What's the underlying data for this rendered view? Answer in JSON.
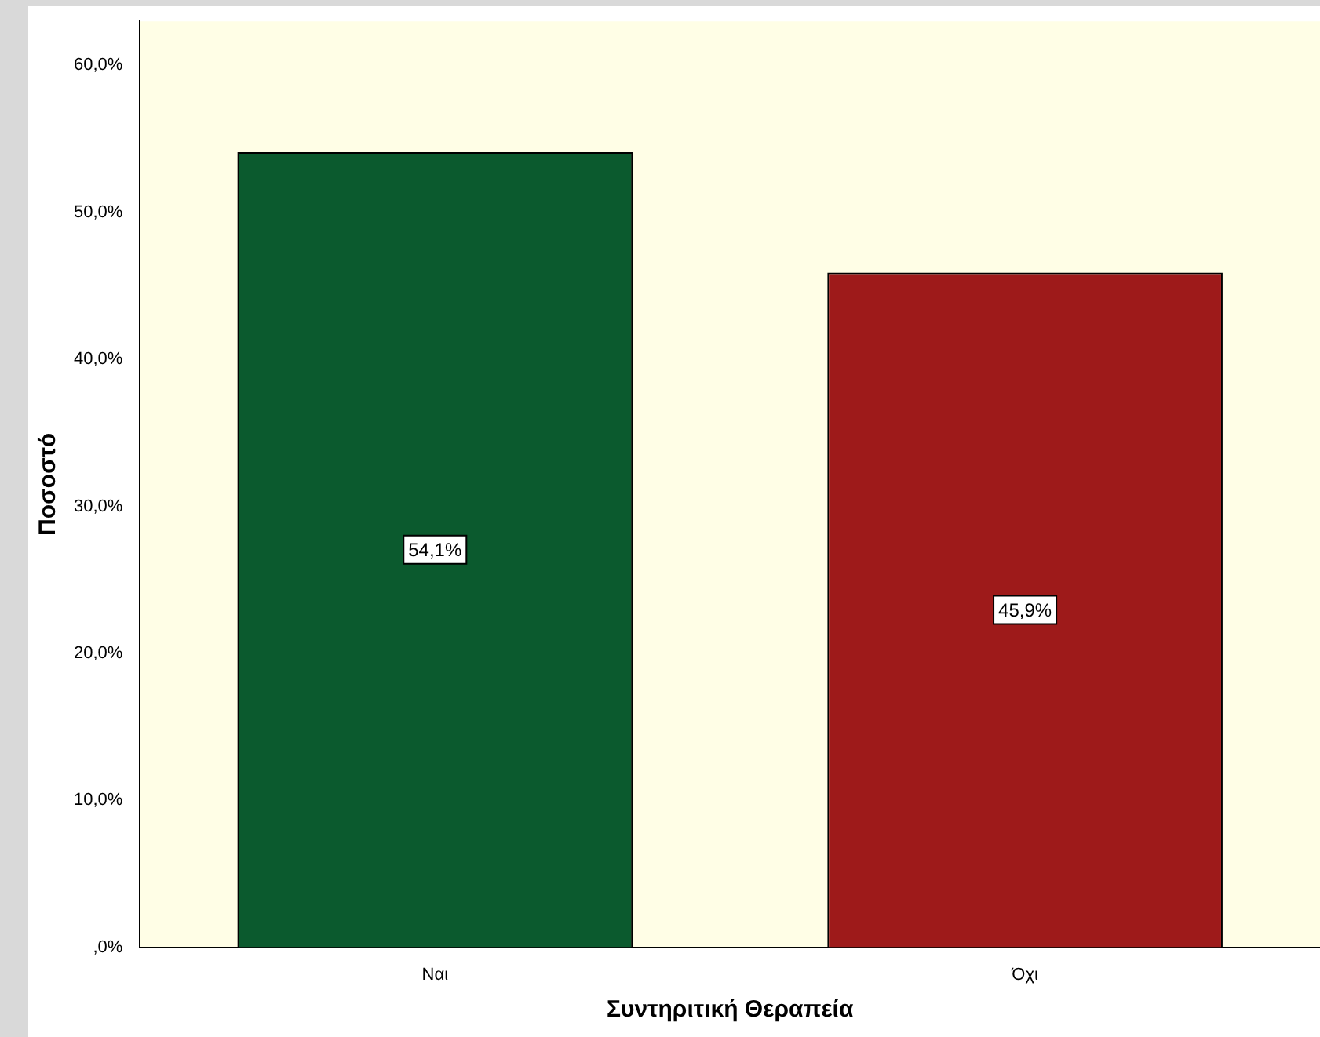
{
  "chart_data": {
    "type": "bar",
    "xlabel": "Συντηριτική Θεραπεία",
    "ylabel": "Ποσοστό",
    "categories": [
      "Ναι",
      "Όχι"
    ],
    "values": [
      54.1,
      45.9
    ],
    "colors": [
      "#0b5a2e",
      "#9e1a1a"
    ],
    "value_labels": [
      "54,1%",
      "45,9%"
    ],
    "ylim": [
      0,
      63
    ],
    "yticks": [
      {
        "value": 0,
        "label": ",0%"
      },
      {
        "value": 10,
        "label": "10,0%"
      },
      {
        "value": 20,
        "label": "20,0%"
      },
      {
        "value": 30,
        "label": "30,0%"
      },
      {
        "value": 40,
        "label": "40,0%"
      },
      {
        "value": 50,
        "label": "50,0%"
      },
      {
        "value": 60,
        "label": "60,0%"
      }
    ]
  }
}
